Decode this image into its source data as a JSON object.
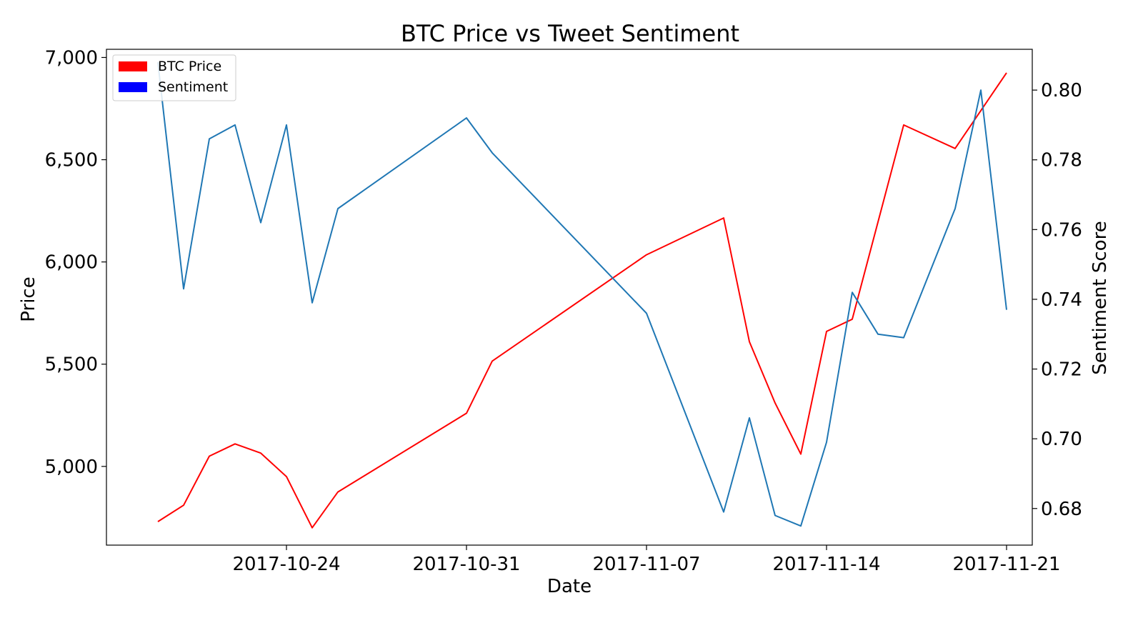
{
  "chart_data": {
    "type": "line",
    "title": "BTC Price vs Tweet Sentiment",
    "xlabel": "Date",
    "ylabel": "Price",
    "y2label": "Sentiment Score",
    "grid": false,
    "legend_position": "top-left",
    "x_ticks": [
      "2017-10-24",
      "2017-10-31",
      "2017-11-07",
      "2017-11-14",
      "2017-11-21"
    ],
    "y_ticks": [
      "5,000",
      "5,500",
      "6,000",
      "6,500",
      "7,000"
    ],
    "y2_ticks": [
      "0.68",
      "0.70",
      "0.72",
      "0.74",
      "0.76",
      "0.78",
      "0.80"
    ],
    "x_range": [
      "2017-10-17",
      "2017-11-22"
    ],
    "ylim": [
      4615,
      7040
    ],
    "y2lim": [
      0.6695,
      0.8117
    ],
    "legend": [
      {
        "name": "BTC Price",
        "color": "#ff0000"
      },
      {
        "name": "Sentiment",
        "color": "#0000ff"
      }
    ],
    "series": [
      {
        "name": "BTC Price",
        "axis": "left",
        "color": "#ff0000",
        "points": [
          [
            "2017-10-19",
            4730
          ],
          [
            "2017-10-20",
            4810
          ],
          [
            "2017-10-21",
            5050
          ],
          [
            "2017-10-22",
            5110
          ],
          [
            "2017-10-23",
            5065
          ],
          [
            "2017-10-24",
            4950
          ],
          [
            "2017-10-25",
            4700
          ],
          [
            "2017-10-26",
            4875
          ],
          [
            "2017-10-31",
            5260
          ],
          [
            "2017-11-01",
            5515
          ],
          [
            "2017-11-07",
            6035
          ],
          [
            "2017-11-10",
            6215
          ],
          [
            "2017-11-11",
            5610
          ],
          [
            "2017-11-12",
            5310
          ],
          [
            "2017-11-13",
            5060
          ],
          [
            "2017-11-14",
            5660
          ],
          [
            "2017-11-15",
            5720
          ],
          [
            "2017-11-17",
            6670
          ],
          [
            "2017-11-19",
            6555
          ],
          [
            "2017-11-21",
            6925
          ]
        ]
      },
      {
        "name": "Sentiment",
        "axis": "right",
        "color": "#1f77b4",
        "points": [
          [
            "2017-10-19",
            0.808
          ],
          [
            "2017-10-20",
            0.743
          ],
          [
            "2017-10-21",
            0.786
          ],
          [
            "2017-10-22",
            0.79
          ],
          [
            "2017-10-23",
            0.762
          ],
          [
            "2017-10-24",
            0.79
          ],
          [
            "2017-10-25",
            0.739
          ],
          [
            "2017-10-26",
            0.766
          ],
          [
            "2017-10-31",
            0.792
          ],
          [
            "2017-11-01",
            0.782
          ],
          [
            "2017-11-07",
            0.736
          ],
          [
            "2017-11-10",
            0.679
          ],
          [
            "2017-11-11",
            0.706
          ],
          [
            "2017-11-12",
            0.678
          ],
          [
            "2017-11-13",
            0.675
          ],
          [
            "2017-11-14",
            0.699
          ],
          [
            "2017-11-15",
            0.742
          ],
          [
            "2017-11-16",
            0.73
          ],
          [
            "2017-11-17",
            0.729
          ],
          [
            "2017-11-19",
            0.766
          ],
          [
            "2017-11-20",
            0.8
          ],
          [
            "2017-11-21",
            0.737
          ]
        ]
      }
    ]
  }
}
